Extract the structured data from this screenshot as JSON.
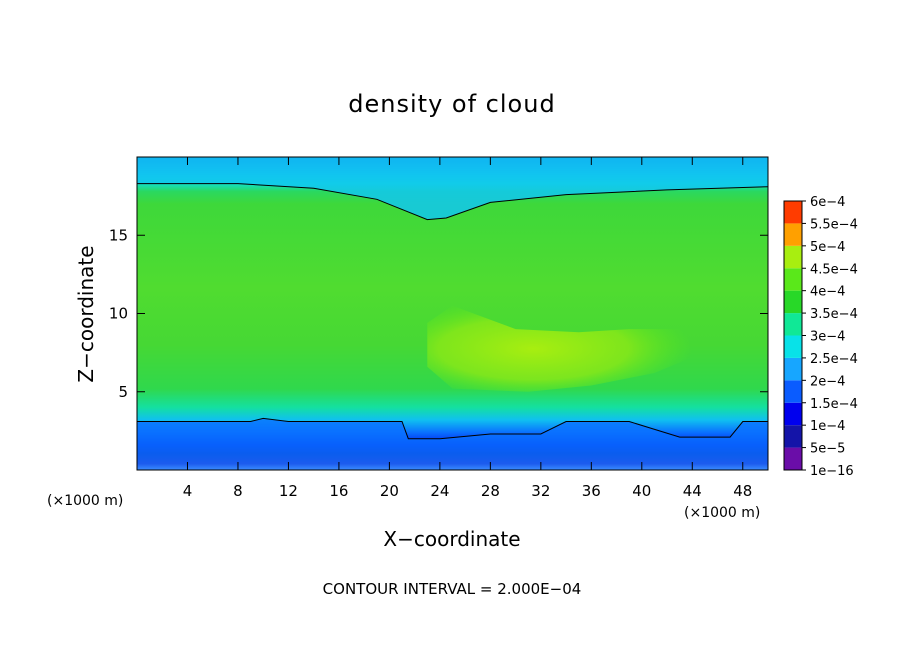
{
  "chart_data": {
    "type": "heatmap",
    "title": "density of cloud",
    "xlabel": "X−coordinate",
    "ylabel": "Z−coordinate",
    "x_unit": "(×1000 m)",
    "x_ticks": [
      4,
      8,
      12,
      16,
      20,
      24,
      28,
      32,
      36,
      40,
      44,
      48
    ],
    "y_ticks": [
      5,
      10,
      15
    ],
    "xlim": [
      0,
      50
    ],
    "ylim": [
      0,
      20
    ],
    "colorbar": {
      "levels": [
        "1e−16",
        "5e−5",
        "1e−4",
        "1.5e−4",
        "2e−4",
        "2.5e−4",
        "3e−4",
        "3.5e−4",
        "4e−4",
        "4.5e−4",
        "5e−4",
        "5.5e−4",
        "6e−4"
      ],
      "colors": [
        "#6a0da8",
        "#1414a8",
        "#0000ee",
        "#0a5cff",
        "#17a6ff",
        "#08e2e8",
        "#10e896",
        "#28d828",
        "#5ae81a",
        "#a8ee10",
        "#ffa000",
        "#ff3c00",
        "#ff1414",
        "#ff8c8c"
      ]
    },
    "contour_interval": "CONTOUR INTERVAL = 2.000E−04",
    "field": {
      "top_contour_z": [
        [
          0,
          18.3
        ],
        [
          8,
          18.3
        ],
        [
          14,
          18.0
        ],
        [
          19,
          17.3
        ],
        [
          23,
          16.0
        ],
        [
          24.5,
          16.1
        ],
        [
          28,
          17.1
        ],
        [
          34,
          17.6
        ],
        [
          42,
          17.9
        ],
        [
          50,
          18.1
        ]
      ],
      "bottom_contour_z": [
        [
          0,
          3.1
        ],
        [
          9,
          3.1
        ],
        [
          10,
          3.3
        ],
        [
          12,
          3.1
        ],
        [
          21,
          3.1
        ],
        [
          21.5,
          2.0
        ],
        [
          24,
          2.0
        ],
        [
          28,
          2.3
        ],
        [
          32,
          2.3
        ],
        [
          34,
          3.1
        ],
        [
          39,
          3.1
        ],
        [
          43,
          2.1
        ],
        [
          47,
          2.1
        ],
        [
          48,
          3.1
        ],
        [
          50,
          3.1
        ]
      ],
      "high_zone": [
        [
          23,
          9.4
        ],
        [
          25,
          10.5
        ],
        [
          30,
          9.0
        ],
        [
          35,
          8.8
        ],
        [
          39,
          9.0
        ],
        [
          43.5,
          9.0
        ],
        [
          44,
          7.2
        ],
        [
          41,
          6.2
        ],
        [
          36,
          5.4
        ],
        [
          31,
          5.0
        ],
        [
          25,
          5.2
        ],
        [
          23,
          6.6
        ]
      ]
    }
  }
}
